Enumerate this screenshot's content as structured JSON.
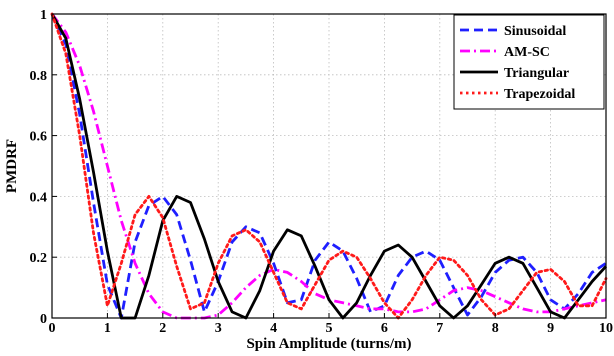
{
  "chart_data": {
    "type": "line",
    "xlabel": "Spin Amplitude (turns/m)",
    "ylabel": "PMDRF",
    "xlim": [
      0,
      10
    ],
    "ylim": [
      0,
      1
    ],
    "xticks": [
      "0",
      "1",
      "2",
      "3",
      "4",
      "5",
      "6",
      "7",
      "8",
      "9",
      "10"
    ],
    "yticks": [
      "0",
      "0.2",
      "0.4",
      "0.6",
      "0.8",
      "1"
    ],
    "grid": true,
    "legend_position": "top-right",
    "x": [
      0,
      0.25,
      0.5,
      0.75,
      1.0,
      1.25,
      1.5,
      1.75,
      2.0,
      2.25,
      2.5,
      2.75,
      3.0,
      3.25,
      3.5,
      3.75,
      4.0,
      4.25,
      4.5,
      4.75,
      5.0,
      5.25,
      5.5,
      5.75,
      6.0,
      6.25,
      6.5,
      6.75,
      7.0,
      7.25,
      7.5,
      7.75,
      8.0,
      8.25,
      8.5,
      8.75,
      9.0,
      9.25,
      9.5,
      9.75,
      10.0
    ],
    "series": [
      {
        "name": "Sinusoidal",
        "color": "#1f1fff",
        "style": "dashed",
        "values": [
          1.0,
          0.9,
          0.67,
          0.38,
          0.11,
          0.0,
          0.25,
          0.37,
          0.4,
          0.34,
          0.19,
          0.02,
          0.12,
          0.25,
          0.3,
          0.28,
          0.18,
          0.05,
          0.06,
          0.19,
          0.25,
          0.22,
          0.13,
          0.02,
          0.04,
          0.14,
          0.2,
          0.22,
          0.19,
          0.1,
          0.01,
          0.07,
          0.15,
          0.19,
          0.2,
          0.15,
          0.06,
          0.03,
          0.08,
          0.15,
          0.18
        ]
      },
      {
        "name": "AM-SC",
        "color": "#ff00ff",
        "style": "dashdot",
        "values": [
          1.0,
          0.94,
          0.83,
          0.68,
          0.5,
          0.32,
          0.18,
          0.08,
          0.02,
          0.0,
          0.0,
          0.0,
          0.01,
          0.05,
          0.1,
          0.14,
          0.16,
          0.15,
          0.12,
          0.08,
          0.06,
          0.05,
          0.04,
          0.03,
          0.03,
          0.02,
          0.02,
          0.03,
          0.06,
          0.09,
          0.1,
          0.09,
          0.07,
          0.05,
          0.03,
          0.02,
          0.02,
          0.03,
          0.04,
          0.05,
          0.06
        ]
      },
      {
        "name": "Triangular",
        "color": "#000000",
        "style": "solid",
        "values": [
          1.0,
          0.92,
          0.72,
          0.48,
          0.22,
          0.0,
          0.0,
          0.14,
          0.32,
          0.4,
          0.38,
          0.26,
          0.12,
          0.02,
          0.0,
          0.09,
          0.22,
          0.29,
          0.27,
          0.17,
          0.06,
          0.0,
          0.05,
          0.14,
          0.22,
          0.24,
          0.2,
          0.12,
          0.04,
          0.0,
          0.04,
          0.11,
          0.18,
          0.2,
          0.18,
          0.1,
          0.02,
          0.0,
          0.06,
          0.12,
          0.17
        ]
      },
      {
        "name": "Trapezoidal",
        "color": "#ff1a1a",
        "style": "dotted",
        "values": [
          1.0,
          0.87,
          0.6,
          0.28,
          0.04,
          0.18,
          0.34,
          0.4,
          0.33,
          0.17,
          0.03,
          0.05,
          0.18,
          0.27,
          0.29,
          0.25,
          0.15,
          0.05,
          0.03,
          0.11,
          0.19,
          0.22,
          0.2,
          0.13,
          0.05,
          0.0,
          0.06,
          0.14,
          0.2,
          0.19,
          0.14,
          0.06,
          0.01,
          0.03,
          0.09,
          0.15,
          0.16,
          0.12,
          0.04,
          0.04,
          0.13
        ]
      }
    ]
  }
}
